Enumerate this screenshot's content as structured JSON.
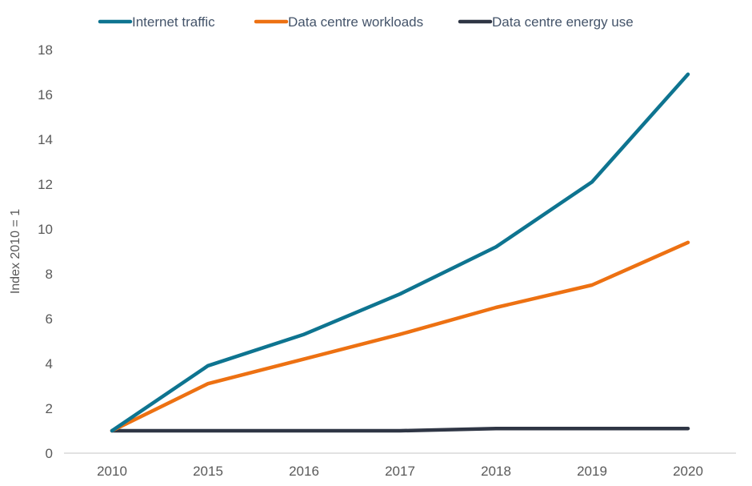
{
  "chart_data": {
    "type": "line",
    "title": "",
    "xlabel": "",
    "ylabel": "Index 2010 = 1",
    "ylim": [
      0,
      18
    ],
    "yticks": [
      0,
      2,
      4,
      6,
      8,
      10,
      12,
      14,
      16,
      18
    ],
    "ytick_labels": [
      "0",
      "2",
      "4",
      "6",
      "8",
      "10",
      "12",
      "14",
      "16",
      "18"
    ],
    "categories": [
      "2010",
      "2015",
      "2016",
      "2017",
      "2018",
      "2019",
      "2020"
    ],
    "grid": false,
    "legend_position": "top",
    "series": [
      {
        "name": "Internet traffic",
        "color": "#0e7490",
        "values": [
          1.0,
          3.9,
          5.3,
          7.1,
          9.2,
          12.1,
          16.9
        ]
      },
      {
        "name": "Data centre workloads",
        "color": "#ed7112",
        "values": [
          1.0,
          3.1,
          4.2,
          5.3,
          6.5,
          7.5,
          9.4
        ]
      },
      {
        "name": "Data centre energy use",
        "color": "#2f3645",
        "values": [
          1.0,
          1.0,
          1.0,
          1.0,
          1.1,
          1.1,
          1.1
        ]
      }
    ]
  }
}
